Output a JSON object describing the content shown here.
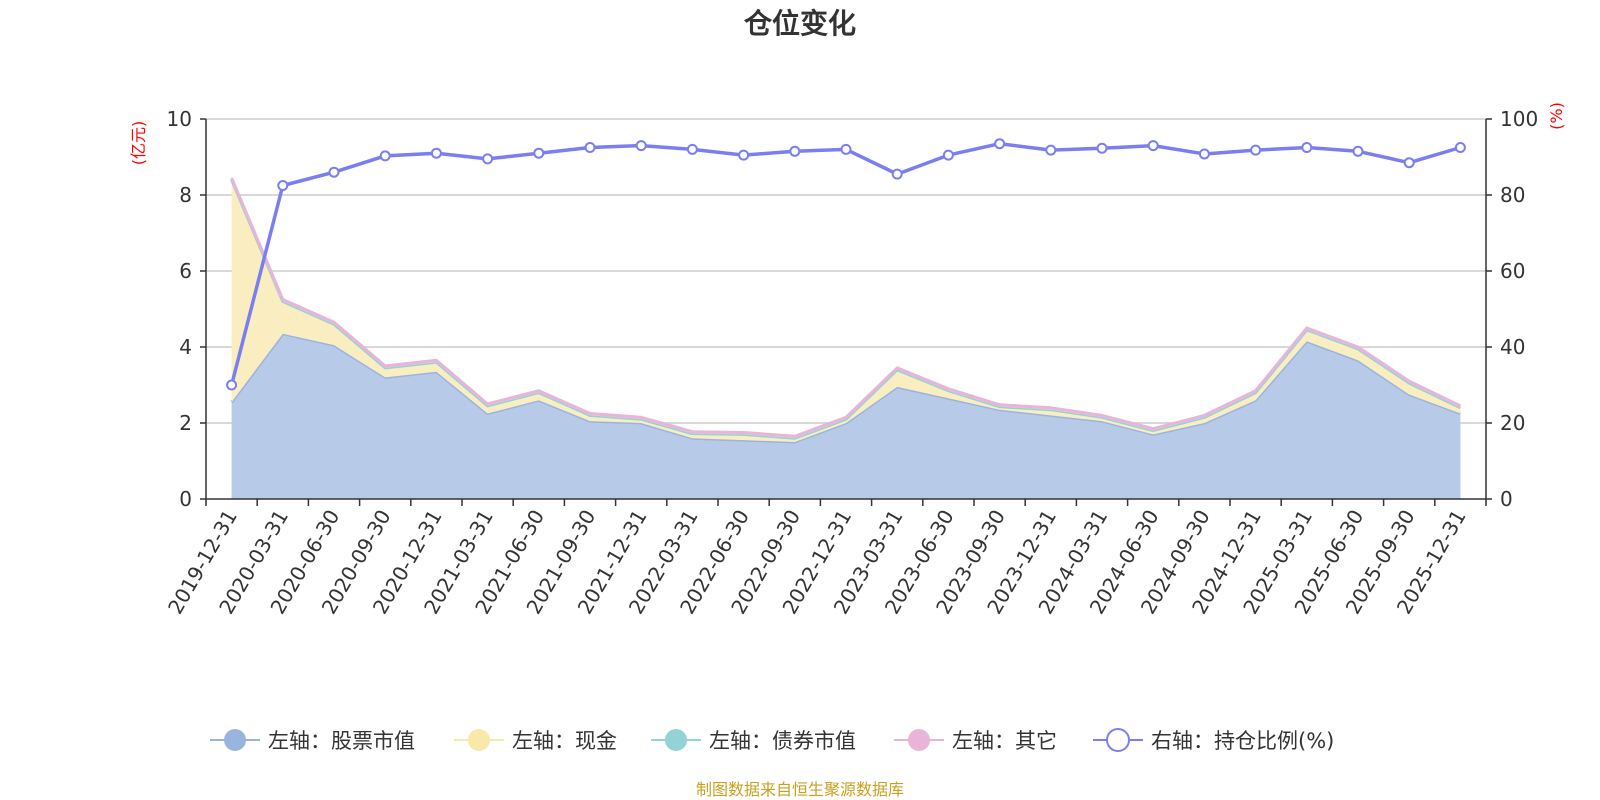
{
  "chart_data": {
    "type": "area",
    "title": "仓位变化",
    "left_axis_unit": "(亿元)",
    "right_axis_unit": "(%)",
    "left_ylim": [
      0,
      10
    ],
    "right_ylim": [
      0,
      100
    ],
    "left_ticks": [
      "0",
      "2",
      "4",
      "6",
      "8",
      "10"
    ],
    "right_ticks": [
      "0",
      "20",
      "40",
      "60",
      "80",
      "100"
    ],
    "grid": true,
    "legend_position": "bottom",
    "categories": [
      "2019-12-31",
      "2020-03-31",
      "2020-06-30",
      "2020-09-30",
      "2020-12-31",
      "2021-03-31",
      "2021-06-30",
      "2021-09-30",
      "2021-12-31",
      "2022-03-31",
      "2022-06-30",
      "2022-09-30",
      "2022-12-31",
      "2023-03-31",
      "2023-06-30",
      "2023-09-30",
      "2023-12-31",
      "2024-03-31",
      "2024-06-30",
      "2024-09-30",
      "2024-12-31",
      "2025-03-31",
      "2025-06-30",
      "2025-09-30",
      "2025-12-31"
    ],
    "series": [
      {
        "name": "左轴：股票市值",
        "axis": "left",
        "stack": true,
        "color": "#9ab4e0",
        "fill": "#b7cbe9",
        "values": [
          2.55,
          4.35,
          4.05,
          3.2,
          3.35,
          2.25,
          2.6,
          2.05,
          2.0,
          1.6,
          1.55,
          1.5,
          2.0,
          2.95,
          2.65,
          2.35,
          2.2,
          2.05,
          1.7,
          2.0,
          2.6,
          4.15,
          3.65,
          2.75,
          2.25
        ]
      },
      {
        "name": "左轴：现金",
        "axis": "left",
        "stack": true,
        "color": "#f9e8a8",
        "fill": "#faeec1",
        "values": [
          5.85,
          0.85,
          0.55,
          0.25,
          0.25,
          0.2,
          0.2,
          0.15,
          0.1,
          0.12,
          0.15,
          0.1,
          0.1,
          0.45,
          0.2,
          0.08,
          0.15,
          0.1,
          0.1,
          0.15,
          0.2,
          0.3,
          0.3,
          0.3,
          0.15
        ]
      },
      {
        "name": "左轴：债券市值",
        "axis": "left",
        "stack": true,
        "color": "#93d3d6",
        "fill": "#b2e0e2",
        "values": [
          0,
          0,
          0,
          0,
          0,
          0,
          0,
          0,
          0,
          0,
          0,
          0,
          0,
          0,
          0,
          0,
          0,
          0,
          0,
          0,
          0,
          0,
          0,
          0,
          0
        ]
      },
      {
        "name": "左轴：其它",
        "axis": "left",
        "stack": true,
        "color": "#e8b4d8",
        "fill": "#efc9e3",
        "values": [
          0.05,
          0.05,
          0.05,
          0.05,
          0.05,
          0.05,
          0.05,
          0.05,
          0.05,
          0.05,
          0.05,
          0.05,
          0.05,
          0.05,
          0.05,
          0.05,
          0.05,
          0.05,
          0.05,
          0.05,
          0.05,
          0.05,
          0.05,
          0.05,
          0.05
        ]
      },
      {
        "name": "右轴：持仓比例(%)",
        "axis": "right",
        "stack": false,
        "color": "#7b7ef0",
        "values": [
          30,
          82.5,
          86,
          90.3,
          91,
          89.5,
          91,
          92.5,
          93,
          92,
          90.5,
          91.5,
          92,
          85.5,
          90.5,
          93.5,
          91.8,
          92.3,
          93,
          90.8,
          91.8,
          92.5,
          91.5,
          88.5,
          92.5
        ]
      }
    ],
    "source_note": "制图数据来自恒生聚源数据库"
  }
}
